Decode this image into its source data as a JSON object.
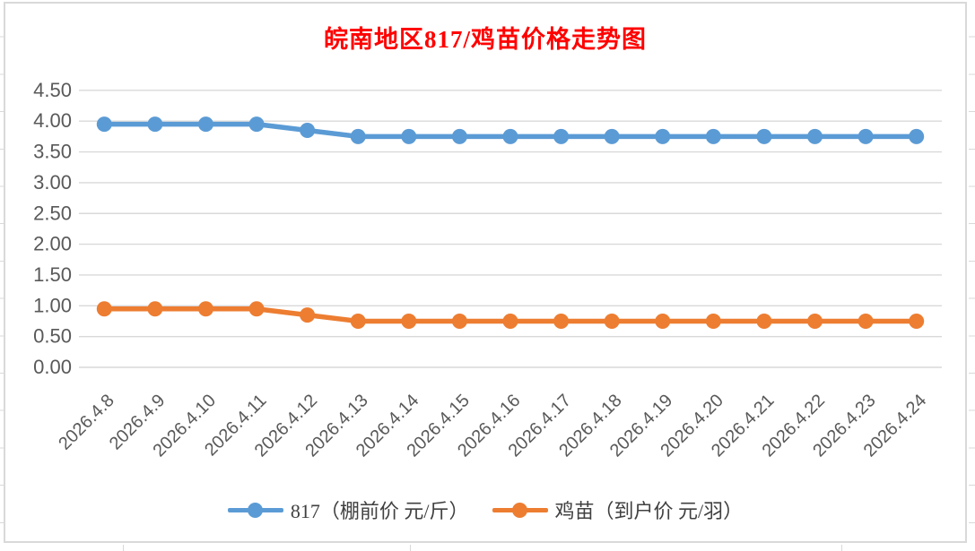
{
  "chart_data": {
    "type": "line",
    "title": "皖南地区817/鸡苗价格走势图",
    "title_color": "#FF0000",
    "categories": [
      "2026.4.8",
      "2026.4.9",
      "2026.4.10",
      "2026.4.11",
      "2026.4.12",
      "2026.4.13",
      "2026.4.14",
      "2026.4.15",
      "2026.4.16",
      "2026.4.17",
      "2026.4.18",
      "2026.4.19",
      "2026.4.20",
      "2026.4.21",
      "2026.4.22",
      "2026.4.23",
      "2026.4.24"
    ],
    "series": [
      {
        "name": "817（棚前价 元/斤）",
        "color": "#5B9BD5",
        "values": [
          3.95,
          3.95,
          3.95,
          3.95,
          3.85,
          3.75,
          3.75,
          3.75,
          3.75,
          3.75,
          3.75,
          3.75,
          3.75,
          3.75,
          3.75,
          3.75,
          3.75
        ]
      },
      {
        "name": "鸡苗（到户价 元/羽）",
        "color": "#ED7D31",
        "values": [
          0.95,
          0.95,
          0.95,
          0.95,
          0.85,
          0.75,
          0.75,
          0.75,
          0.75,
          0.75,
          0.75,
          0.75,
          0.75,
          0.75,
          0.75,
          0.75,
          0.75
        ]
      }
    ],
    "xlabel": "",
    "ylabel": "",
    "ylim": [
      0,
      4.5
    ],
    "ytick_step": 0.5,
    "ytick_labels": [
      "0.00",
      "0.50",
      "1.00",
      "1.50",
      "2.00",
      "2.50",
      "3.00",
      "3.50",
      "4.00",
      "4.50"
    ],
    "grid": true,
    "legend_position": "bottom",
    "axis_text_color": "#595959",
    "gridline_color": "#D9D9D9",
    "x_label_rotation_deg": 45
  }
}
